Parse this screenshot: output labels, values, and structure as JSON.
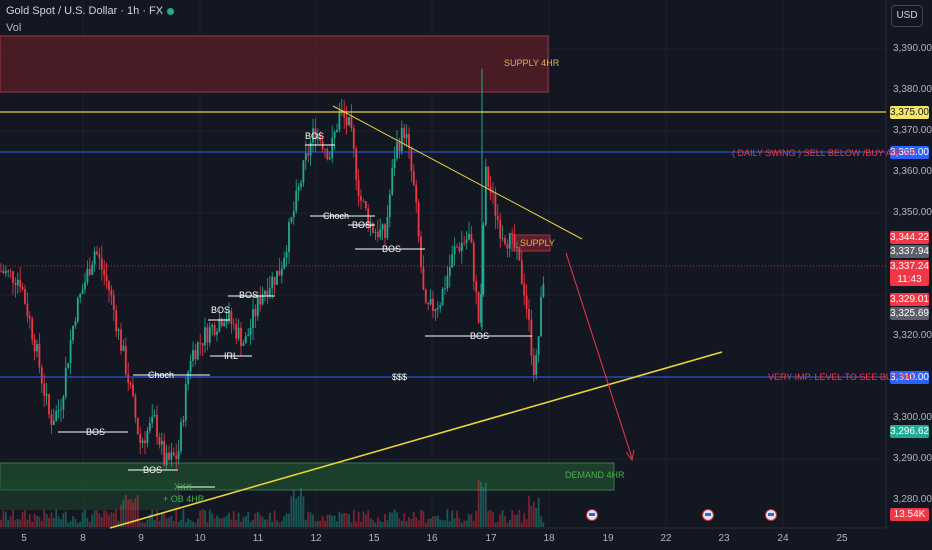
{
  "header": {
    "title": "Gold Spot / U.S. Dollar · 1h · FX",
    "vol_label": "Vol",
    "currency_button": "USD"
  },
  "colors": {
    "background": "#131722",
    "up": "#22ab94",
    "down": "#f23645",
    "yellow_line": "#e8d33a",
    "blue_line": "#2962ff",
    "supply_zone": "#5c1f27",
    "demand_zone": "#1e4a2e"
  },
  "price_axis": {
    "ticks": [
      "3,390.00",
      "3,380.00",
      "3,370.00",
      "3,360.00",
      "3,350.00",
      "3,320.00",
      "3,300.00",
      "3,290.00",
      "3,280.00"
    ],
    "tags": {
      "level_3375": "3,375.00",
      "level_3365": "3,365.00",
      "level_3344": "3,344.22",
      "level_3337_94": "3,337.94",
      "last_price": "3,337.24",
      "countdown": "11:43",
      "level_3329": "3,329.01",
      "level_3325": "3,325.69",
      "level_3310": "3,310.00",
      "level_3296": "3,296.62",
      "volume": "13.54K"
    }
  },
  "time_axis": {
    "labels": [
      "5",
      "8",
      "9",
      "10",
      "11",
      "12",
      "15",
      "16",
      "17",
      "18",
      "19",
      "22",
      "23",
      "24",
      "25"
    ]
  },
  "annotations": {
    "supply_4hr": "SUPPLY 4HR",
    "daily_swing": "( DAILY SWING ) SELL BELOW /BUY ABOVE",
    "very_imp": "VERY IMP. LEVEL TO SEE BUYING",
    "supply": "SUPPLY",
    "demand_4hr": "DEMAND 4HR",
    "sss": "$$$",
    "choch_1": "Choch",
    "choch_2": "Choch",
    "bos_1": "BOS",
    "bos_2": "BOS",
    "bos_3": "BOS",
    "bos_4": "BOS",
    "bos_5": "BOS",
    "bos_6": "BOS",
    "bos_7": "BOS",
    "bos_8": "BOS",
    "irl": "IRL",
    "xxx": "XXX",
    "ob_4hr": "+ OB 4HR"
  },
  "chart_data": {
    "type": "candlestick",
    "symbol": "Gold Spot / U.S. Dollar",
    "timeframe": "1h",
    "y_range": [
      3275,
      3398
    ],
    "levels": [
      3375.0,
      3365.0,
      3310.0
    ],
    "last_price": 3337.24,
    "path": [
      [
        0,
        3335
      ],
      [
        20,
        3333
      ],
      [
        35,
        3318
      ],
      [
        50,
        3300
      ],
      [
        60,
        3303
      ],
      [
        75,
        3325
      ],
      [
        95,
        3340
      ],
      [
        110,
        3330
      ],
      [
        128,
        3310
      ],
      [
        140,
        3295
      ],
      [
        155,
        3300
      ],
      [
        165,
        3290
      ],
      [
        178,
        3292
      ],
      [
        190,
        3315
      ],
      [
        205,
        3320
      ],
      [
        225,
        3325
      ],
      [
        245,
        3318
      ],
      [
        262,
        3330
      ],
      [
        280,
        3335
      ],
      [
        295,
        3350
      ],
      [
        305,
        3360
      ],
      [
        315,
        3368
      ],
      [
        330,
        3362
      ],
      [
        340,
        3372
      ],
      [
        350,
        3368
      ],
      [
        360,
        3352
      ],
      [
        372,
        3345
      ],
      [
        385,
        3343
      ],
      [
        395,
        3363
      ],
      [
        405,
        3368
      ],
      [
        415,
        3352
      ],
      [
        425,
        3325
      ],
      [
        440,
        3328
      ],
      [
        455,
        3340
      ],
      [
        470,
        3343
      ],
      [
        480,
        3320
      ],
      [
        485,
        3358
      ],
      [
        500,
        3345
      ],
      [
        515,
        3340
      ],
      [
        525,
        3330
      ],
      [
        535,
        3310
      ],
      [
        545,
        3338
      ]
    ],
    "volume_peaks": [
      [
        0.3,
        0.4
      ],
      [
        0.35,
        0.55
      ],
      [
        0.8,
        0.6
      ],
      [
        0.5,
        0.5
      ]
    ]
  }
}
